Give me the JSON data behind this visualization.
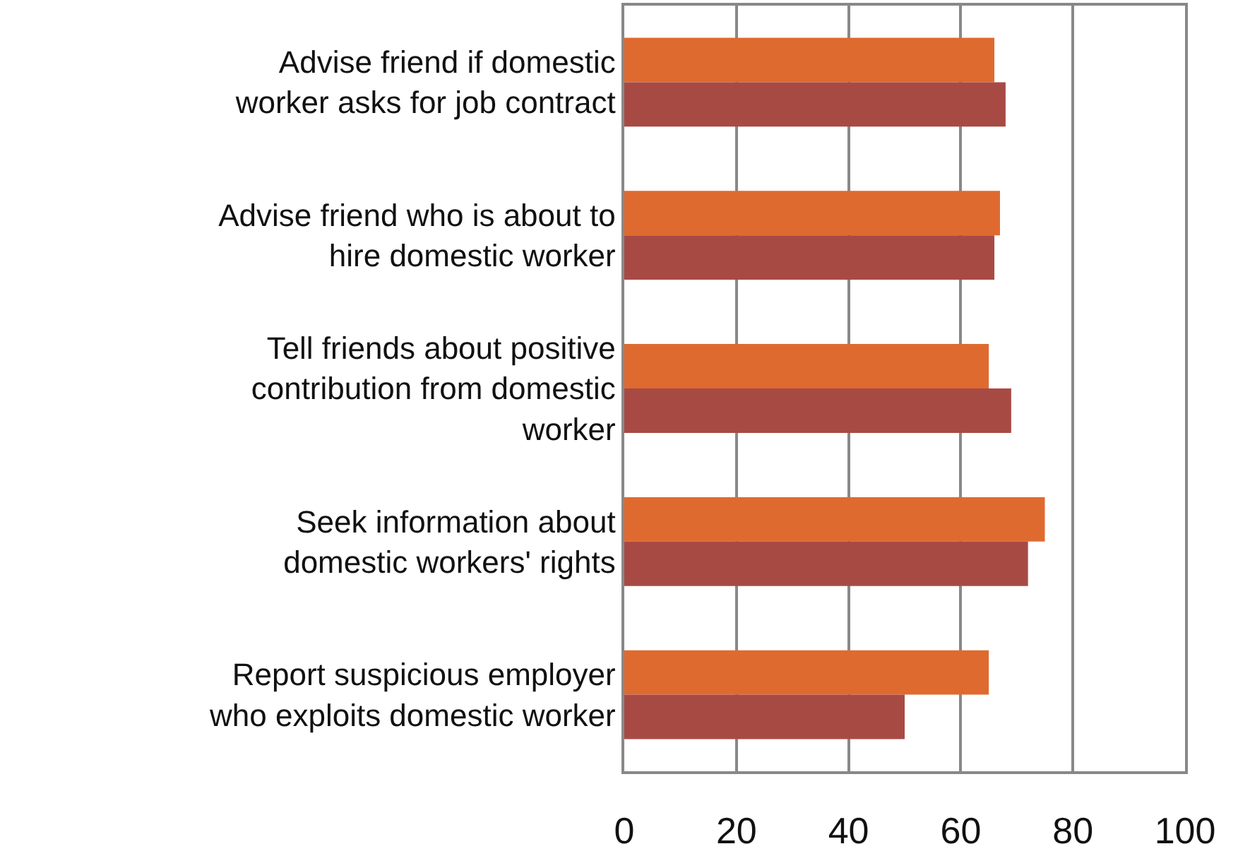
{
  "chart_data": {
    "type": "bar",
    "orientation": "horizontal",
    "categories": [
      "Advise friend if domestic worker asks for job contract",
      "Advise friend who is about to hire domestic worker",
      "Tell friends about positive contribution from domestic worker",
      "Seek information about domestic workers' rights",
      "Report suspicious employer who exploits domestic worker"
    ],
    "series": [
      {
        "color": "#df6a2f",
        "values": [
          66,
          67,
          65,
          75,
          65
        ]
      },
      {
        "color": "#a84a44",
        "values": [
          68,
          66,
          69,
          72,
          50
        ]
      }
    ],
    "xlim": [
      0,
      100
    ],
    "xticks": [
      0,
      20,
      40,
      60,
      80,
      100
    ],
    "grid": "x"
  }
}
